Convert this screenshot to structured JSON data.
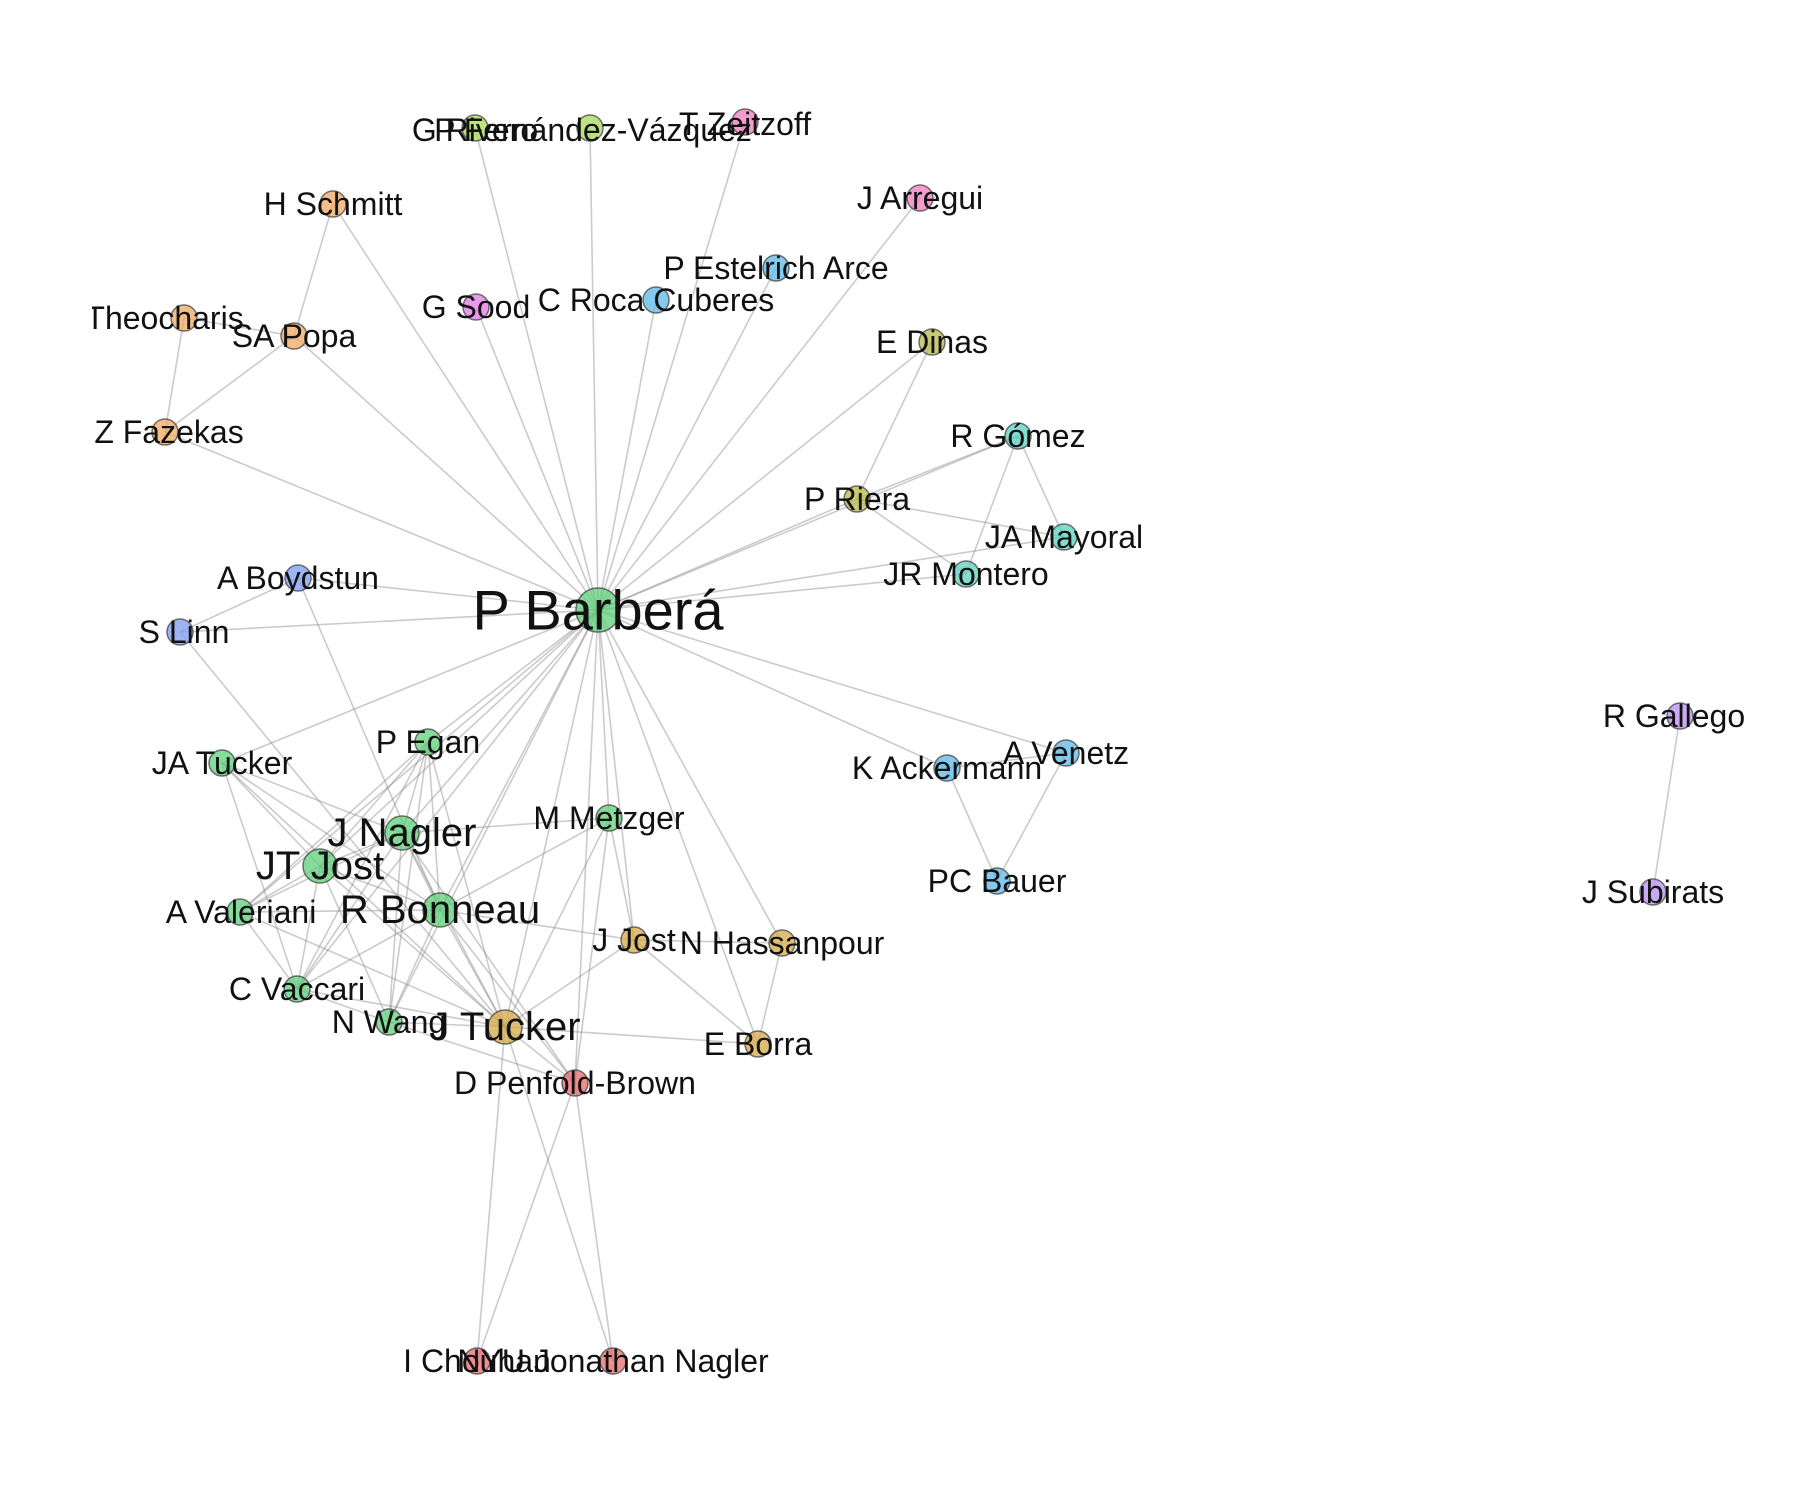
{
  "colors": {
    "green": "#5fd07a",
    "lime": "#a8d85a",
    "orange": "#f0a860",
    "pink": "#f07ac0",
    "magenta": "#e07ae8",
    "sky": "#5ab8e8",
    "olive": "#b8b848",
    "teal": "#5ad0c0",
    "blue": "#7c9cf0",
    "gold": "#d4a848",
    "red": "#e86a6a",
    "purple": "#b88ef0"
  },
  "nodes": [
    {
      "id": "barbera",
      "label": "P Barberá",
      "color": "green",
      "hub": true
    },
    {
      "id": "rivero",
      "label": "G Rivero",
      "color": "lime"
    },
    {
      "id": "fernandez",
      "label": "P Fernández-Vázquez",
      "color": "lime"
    },
    {
      "id": "zeitzoff",
      "label": "T Zeitzoff",
      "color": "pink"
    },
    {
      "id": "arregui",
      "label": "J Arregui",
      "color": "pink"
    },
    {
      "id": "schmitt",
      "label": "H Schmitt",
      "color": "orange"
    },
    {
      "id": "theocharis",
      "label": "Y Theocharis",
      "color": "orange"
    },
    {
      "id": "popa",
      "label": "SA Popa",
      "color": "orange"
    },
    {
      "id": "fazekas",
      "label": "Z Fazekas",
      "color": "orange"
    },
    {
      "id": "sood",
      "label": "G Sood",
      "color": "magenta"
    },
    {
      "id": "estelrich",
      "label": "P Estelrich Arce",
      "color": "sky"
    },
    {
      "id": "roca",
      "label": "C Roca Cuberes",
      "color": "sky"
    },
    {
      "id": "dinas",
      "label": "E Dinas",
      "color": "olive"
    },
    {
      "id": "riera",
      "label": "P Riera",
      "color": "olive"
    },
    {
      "id": "gomez",
      "label": "R Gómez",
      "color": "teal"
    },
    {
      "id": "mayoral",
      "label": "JA Mayoral",
      "color": "teal"
    },
    {
      "id": "montero",
      "label": "JR Montero",
      "color": "teal"
    },
    {
      "id": "boydstun",
      "label": "A Boydstun",
      "color": "blue"
    },
    {
      "id": "linn",
      "label": "S Linn",
      "color": "blue"
    },
    {
      "id": "egan",
      "label": "P Egan",
      "color": "green"
    },
    {
      "id": "jatucker",
      "label": "JA Tucker",
      "color": "green"
    },
    {
      "id": "nagler",
      "label": "J Nagler",
      "color": "green",
      "big": true
    },
    {
      "id": "jtjost",
      "label": "JT Jost",
      "color": "green",
      "big": true
    },
    {
      "id": "valeriani",
      "label": "A Valeriani",
      "color": "green"
    },
    {
      "id": "bonneau",
      "label": "R Bonneau",
      "color": "green",
      "big": true
    },
    {
      "id": "metzger",
      "label": "M Metzger",
      "color": "green"
    },
    {
      "id": "vaccari",
      "label": "C Vaccari",
      "color": "green"
    },
    {
      "id": "wang",
      "label": "N Wang",
      "color": "green"
    },
    {
      "id": "jtucker",
      "label": "J Tucker",
      "color": "gold",
      "big": true
    },
    {
      "id": "jjost",
      "label": "J Jost",
      "color": "gold"
    },
    {
      "id": "hassanpour",
      "label": "N Hassanpour",
      "color": "gold"
    },
    {
      "id": "borra",
      "label": "E Borra",
      "color": "gold"
    },
    {
      "id": "penfold",
      "label": "D Penfold-Brown",
      "color": "red"
    },
    {
      "id": "chouhan",
      "label": "I Chouhan",
      "color": "red"
    },
    {
      "id": "nyu",
      "label": "NYU Jonathan Nagler",
      "color": "red"
    },
    {
      "id": "ackermann",
      "label": "K Ackermann",
      "color": "sky"
    },
    {
      "id": "venetz",
      "label": "A Venetz",
      "color": "sky"
    },
    {
      "id": "bauer",
      "label": "PC Bauer",
      "color": "sky"
    },
    {
      "id": "gallego",
      "label": "R Gallego",
      "color": "purple"
    },
    {
      "id": "subirats",
      "label": "J Subirats",
      "color": "purple"
    }
  ],
  "edges": [
    [
      "barbera",
      "rivero"
    ],
    [
      "barbera",
      "fernandez"
    ],
    [
      "barbera",
      "zeitzoff"
    ],
    [
      "barbera",
      "arregui"
    ],
    [
      "barbera",
      "schmitt"
    ],
    [
      "barbera",
      "popa"
    ],
    [
      "barbera",
      "fazekas"
    ],
    [
      "barbera",
      "sood"
    ],
    [
      "barbera",
      "estelrich"
    ],
    [
      "barbera",
      "roca"
    ],
    [
      "barbera",
      "dinas"
    ],
    [
      "barbera",
      "riera"
    ],
    [
      "barbera",
      "gomez"
    ],
    [
      "barbera",
      "mayoral"
    ],
    [
      "barbera",
      "montero"
    ],
    [
      "barbera",
      "boydstun"
    ],
    [
      "barbera",
      "linn"
    ],
    [
      "barbera",
      "egan"
    ],
    [
      "barbera",
      "jatucker"
    ],
    [
      "barbera",
      "nagler"
    ],
    [
      "barbera",
      "jtjost"
    ],
    [
      "barbera",
      "valeriani"
    ],
    [
      "barbera",
      "bonneau"
    ],
    [
      "barbera",
      "metzger"
    ],
    [
      "barbera",
      "vaccari"
    ],
    [
      "barbera",
      "wang"
    ],
    [
      "barbera",
      "jtucker"
    ],
    [
      "barbera",
      "jjost"
    ],
    [
      "barbera",
      "hassanpour"
    ],
    [
      "barbera",
      "borra"
    ],
    [
      "barbera",
      "penfold"
    ],
    [
      "barbera",
      "ackermann"
    ],
    [
      "barbera",
      "venetz"
    ],
    [
      "schmitt",
      "popa"
    ],
    [
      "theocharis",
      "popa"
    ],
    [
      "theocharis",
      "fazekas"
    ],
    [
      "popa",
      "fazekas"
    ],
    [
      "dinas",
      "riera"
    ],
    [
      "riera",
      "gomez"
    ],
    [
      "riera",
      "mayoral"
    ],
    [
      "riera",
      "montero"
    ],
    [
      "gomez",
      "mayoral"
    ],
    [
      "gomez",
      "montero"
    ],
    [
      "boydstun",
      "linn"
    ],
    [
      "boydstun",
      "bonneau"
    ],
    [
      "linn",
      "jtucker"
    ],
    [
      "ackermann",
      "venetz"
    ],
    [
      "ackermann",
      "bauer"
    ],
    [
      "venetz",
      "bauer"
    ],
    [
      "egan",
      "nagler"
    ],
    [
      "egan",
      "jtjost"
    ],
    [
      "egan",
      "bonneau"
    ],
    [
      "egan",
      "valeriani"
    ],
    [
      "egan",
      "wang"
    ],
    [
      "egan",
      "vaccari"
    ],
    [
      "egan",
      "jtucker"
    ],
    [
      "jatucker",
      "nagler"
    ],
    [
      "jatucker",
      "jtjost"
    ],
    [
      "jatucker",
      "bonneau"
    ],
    [
      "jatucker",
      "jtucker"
    ],
    [
      "jatucker",
      "vaccari"
    ],
    [
      "nagler",
      "jtjost"
    ],
    [
      "nagler",
      "bonneau"
    ],
    [
      "nagler",
      "valeriani"
    ],
    [
      "nagler",
      "vaccari"
    ],
    [
      "nagler",
      "wang"
    ],
    [
      "nagler",
      "jtucker"
    ],
    [
      "nagler",
      "metzger"
    ],
    [
      "nagler",
      "penfold"
    ],
    [
      "jtjost",
      "bonneau"
    ],
    [
      "jtjost",
      "valeriani"
    ],
    [
      "jtjost",
      "vaccari"
    ],
    [
      "jtjost",
      "wang"
    ],
    [
      "jtjost",
      "jtucker"
    ],
    [
      "bonneau",
      "valeriani"
    ],
    [
      "bonneau",
      "vaccari"
    ],
    [
      "bonneau",
      "wang"
    ],
    [
      "bonneau",
      "jtucker"
    ],
    [
      "bonneau",
      "metzger"
    ],
    [
      "bonneau",
      "jjost"
    ],
    [
      "bonneau",
      "penfold"
    ],
    [
      "valeriani",
      "vaccari"
    ],
    [
      "valeriani",
      "jtucker"
    ],
    [
      "vaccari",
      "jtucker"
    ],
    [
      "vaccari",
      "wang"
    ],
    [
      "wang",
      "jtucker"
    ],
    [
      "wang",
      "penfold"
    ],
    [
      "metzger",
      "jtucker"
    ],
    [
      "metzger",
      "jjost"
    ],
    [
      "metzger",
      "penfold"
    ],
    [
      "jtucker",
      "jjost"
    ],
    [
      "jtucker",
      "borra"
    ],
    [
      "jtucker",
      "penfold"
    ],
    [
      "jtucker",
      "chouhan"
    ],
    [
      "jtucker",
      "nyu"
    ],
    [
      "jjost",
      "hassanpour"
    ],
    [
      "jjost",
      "borra"
    ],
    [
      "hassanpour",
      "borra"
    ],
    [
      "penfold",
      "chouhan"
    ],
    [
      "penfold",
      "nyu"
    ],
    [
      "gallego",
      "subirats"
    ]
  ]
}
